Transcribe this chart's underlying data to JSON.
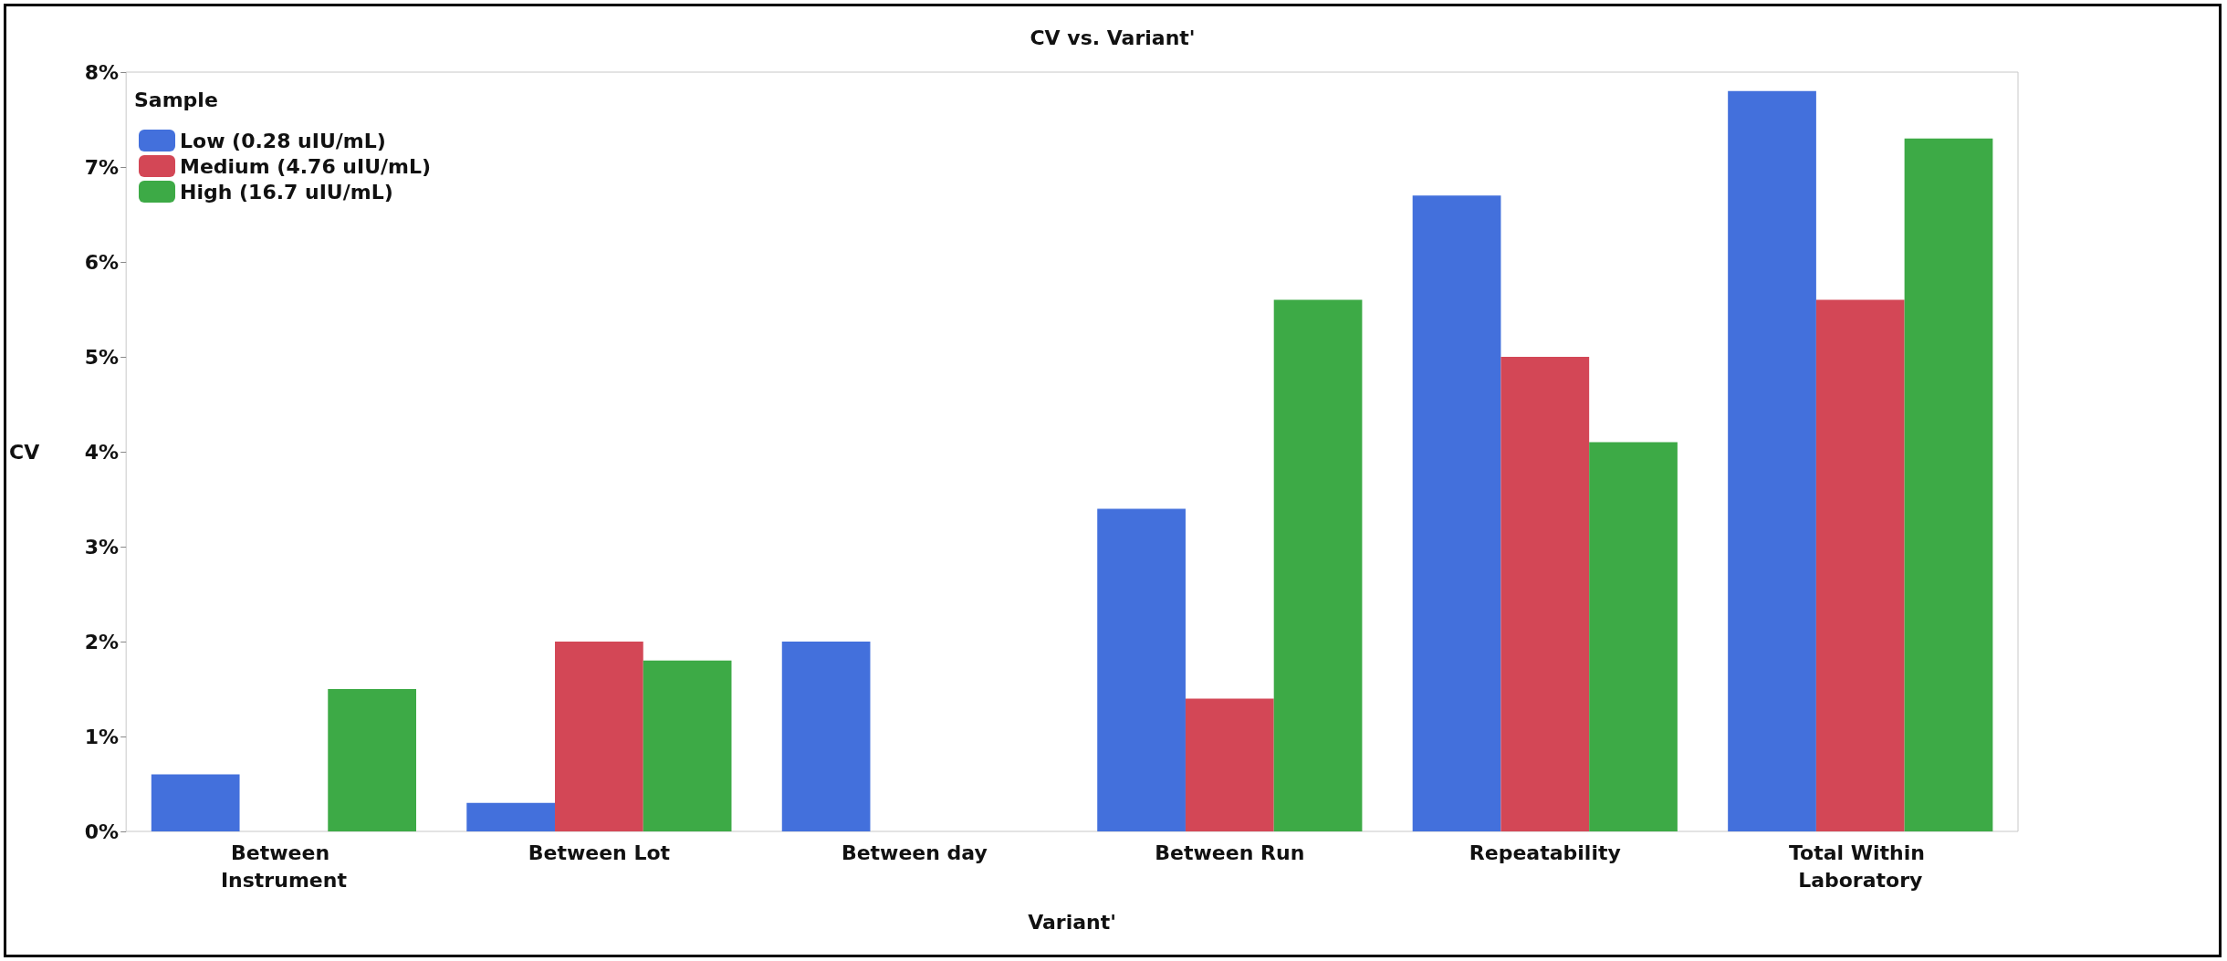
{
  "chart_data": {
    "type": "bar",
    "title": "CV vs. Variant'",
    "xlabel": "Variant'",
    "ylabel": "CV",
    "legend_title": "Sample",
    "categories": [
      "Between Instrument",
      "Between Lot",
      "Between day",
      "Between Run",
      "Repeatability",
      "Total Within Laboratory"
    ],
    "series": [
      {
        "name": "Low (0.28 uIU/mL)",
        "color": "#4370dc",
        "values": [
          0.6,
          0.3,
          2.0,
          3.4,
          6.7,
          7.8
        ]
      },
      {
        "name": "Medium (4.76 uIU/mL)",
        "color": "#d34756",
        "values": [
          null,
          2.0,
          null,
          1.4,
          5.0,
          5.6
        ]
      },
      {
        "name": "High (16.7 uIU/mL)",
        "color": "#3daa46",
        "values": [
          1.5,
          1.8,
          null,
          5.6,
          4.1,
          7.3
        ]
      }
    ],
    "ylim": [
      0,
      8
    ],
    "yticks": [
      {
        "value": 0,
        "label": "0%"
      },
      {
        "value": 1,
        "label": "1%"
      },
      {
        "value": 2,
        "label": "2%"
      },
      {
        "value": 3,
        "label": "3%"
      },
      {
        "value": 4,
        "label": "4%"
      },
      {
        "value": 5,
        "label": "5%"
      },
      {
        "value": 6,
        "label": "6%"
      },
      {
        "value": 7,
        "label": "7%"
      },
      {
        "value": 8,
        "label": "8%"
      }
    ],
    "grid": false,
    "legend": "top left"
  }
}
